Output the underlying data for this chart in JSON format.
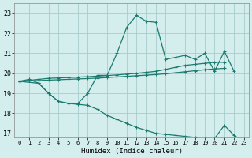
{
  "xlabel": "Humidex (Indice chaleur)",
  "bg_color": "#d4eeee",
  "grid_color": "#a8cccc",
  "line_color": "#1a7a6e",
  "xlim": [
    -0.5,
    23.5
  ],
  "ylim": [
    16.8,
    23.5
  ],
  "yticks": [
    17,
    18,
    19,
    20,
    21,
    22,
    23
  ],
  "xticks": [
    0,
    1,
    2,
    3,
    4,
    5,
    6,
    7,
    8,
    9,
    10,
    11,
    12,
    13,
    14,
    15,
    16,
    17,
    18,
    19,
    20,
    21,
    22,
    23
  ],
  "line1_x": [
    0,
    1,
    2,
    3,
    4,
    5,
    6,
    7,
    8,
    9,
    10,
    11,
    12,
    13,
    14,
    15,
    16,
    17,
    18,
    19,
    20,
    21,
    22
  ],
  "line1_y": [
    19.6,
    19.7,
    19.5,
    19.0,
    18.6,
    18.5,
    18.5,
    19.0,
    19.9,
    19.9,
    21.0,
    22.3,
    22.9,
    22.6,
    22.55,
    20.7,
    20.8,
    20.9,
    20.7,
    21.0,
    20.1,
    21.1,
    20.1
  ],
  "line2_x": [
    0,
    2,
    3,
    4,
    5,
    6,
    7,
    8,
    9,
    10,
    11,
    12,
    13,
    14,
    15,
    16,
    17,
    18,
    19,
    20,
    21,
    22,
    23
  ],
  "line2_y": [
    19.6,
    19.5,
    19.0,
    18.6,
    18.5,
    18.45,
    18.4,
    18.2,
    17.9,
    17.7,
    17.5,
    17.3,
    17.15,
    17.0,
    16.95,
    16.9,
    16.85,
    16.8,
    16.75,
    16.75,
    17.4,
    16.9,
    16.6
  ],
  "line3_x": [
    0,
    1,
    2,
    3,
    4,
    5,
    6,
    7,
    8,
    9,
    10,
    11,
    12,
    13,
    14,
    15,
    16,
    17,
    18,
    19,
    20,
    21
  ],
  "line3_y": [
    19.6,
    19.65,
    19.7,
    19.75,
    19.77,
    19.79,
    19.81,
    19.83,
    19.86,
    19.89,
    19.92,
    19.96,
    20.0,
    20.05,
    20.1,
    20.2,
    20.3,
    20.4,
    20.45,
    20.5,
    20.55,
    20.55
  ],
  "line4_x": [
    0,
    1,
    2,
    3,
    4,
    5,
    6,
    7,
    8,
    9,
    10,
    11,
    12,
    13,
    14,
    15,
    16,
    17,
    18,
    19,
    20,
    21
  ],
  "line4_y": [
    19.6,
    19.62,
    19.64,
    19.66,
    19.68,
    19.7,
    19.72,
    19.74,
    19.76,
    19.79,
    19.82,
    19.85,
    19.88,
    19.91,
    19.94,
    19.98,
    20.03,
    20.08,
    20.13,
    20.18,
    20.22,
    20.25
  ]
}
